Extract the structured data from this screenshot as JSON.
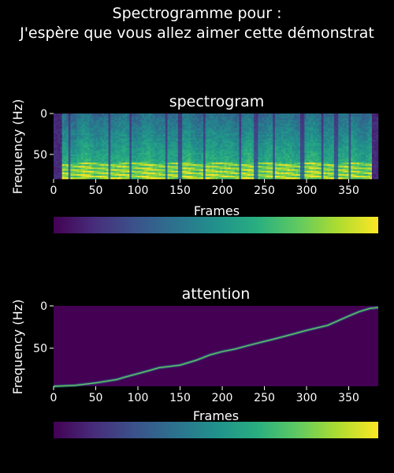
{
  "figure": {
    "title_line1": "Spectrogramme pour :",
    "title_line2": "J'espère que vous allez aimer cette démonstrat"
  },
  "colormap": [
    "#440154",
    "#472d7b",
    "#3b528b",
    "#2c728e",
    "#21918c",
    "#28ae80",
    "#5ec962",
    "#addc30",
    "#fde725"
  ],
  "chart_data": [
    {
      "type": "heatmap",
      "title": "spectrogram",
      "xlabel": "Frames",
      "ylabel": "Frequency (Hz)",
      "xlim": [
        0,
        385
      ],
      "ylim": [
        80,
        0
      ],
      "xticks": [
        0,
        50,
        100,
        150,
        200,
        250,
        300,
        350
      ],
      "yticks": [
        0,
        50
      ],
      "colorbar": true,
      "silence_frames": [
        [
          0,
          10
        ],
        [
          378,
          385
        ]
      ],
      "bright_band_bins": [
        60,
        80
      ]
    },
    {
      "type": "heatmap",
      "title": "attention",
      "xlabel": "Frames",
      "ylabel": "Frequency (Hz)",
      "xlim": [
        0,
        385
      ],
      "ylim": [
        95,
        0
      ],
      "xticks": [
        0,
        50,
        100,
        150,
        200,
        250,
        300,
        350
      ],
      "yticks": [
        0,
        50
      ],
      "colorbar": true,
      "alignment_path": [
        [
          0,
          95
        ],
        [
          25,
          94
        ],
        [
          50,
          91
        ],
        [
          75,
          87
        ],
        [
          85,
          84
        ],
        [
          100,
          80
        ],
        [
          115,
          76
        ],
        [
          125,
          73
        ],
        [
          150,
          70
        ],
        [
          170,
          64
        ],
        [
          185,
          58
        ],
        [
          200,
          54
        ],
        [
          215,
          51
        ],
        [
          230,
          47
        ],
        [
          250,
          42
        ],
        [
          262,
          39
        ],
        [
          285,
          33
        ],
        [
          300,
          29
        ],
        [
          325,
          23
        ],
        [
          350,
          12
        ],
        [
          362,
          7
        ],
        [
          375,
          3
        ],
        [
          385,
          2
        ]
      ]
    }
  ]
}
